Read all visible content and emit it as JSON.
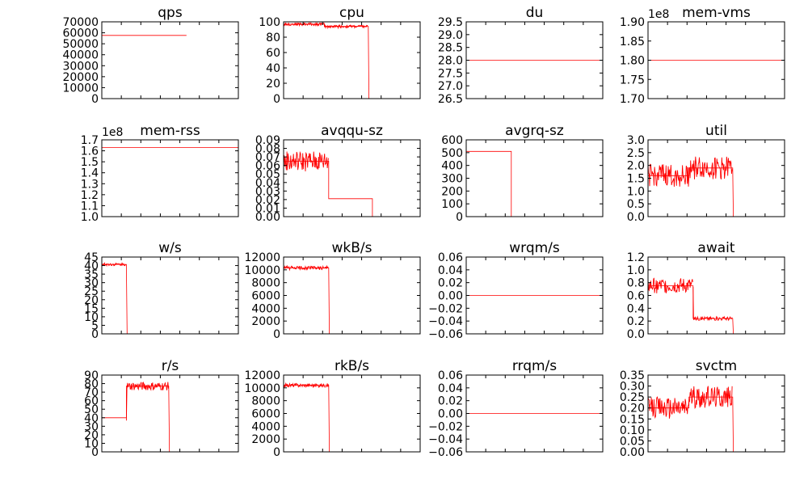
{
  "chart_data": [
    {
      "type": "line",
      "title": "qps",
      "yticks": [
        "0",
        "10000",
        "20000",
        "30000",
        "40000",
        "50000",
        "60000",
        "70000"
      ],
      "ylim": [
        0,
        70000
      ],
      "sci": "",
      "series": [
        {
          "color": "#ff0000",
          "x": [
            0,
            0.62,
            0.62,
            1
          ],
          "y": [
            57600,
            57600,
            null,
            null
          ]
        }
      ]
    },
    {
      "type": "line",
      "title": "cpu",
      "yticks": [
        "0",
        "20",
        "40",
        "60",
        "80",
        "100"
      ],
      "ylim": [
        0,
        100
      ],
      "sci": "",
      "series": [
        {
          "color": "#ff0000",
          "x": [
            0,
            0.3,
            0.3,
            0.62,
            0.62,
            0.625,
            1
          ],
          "y": [
            97,
            97,
            94,
            94,
            94,
            0,
            0
          ],
          "noise": [
            [
              0,
              0.62,
              2
            ]
          ]
        }
      ]
    },
    {
      "type": "line",
      "title": "du",
      "yticks": [
        "26.5",
        "27.0",
        "27.5",
        "28.0",
        "28.5",
        "29.0",
        "29.5"
      ],
      "ylim": [
        26.5,
        29.5
      ],
      "sci": "",
      "series": [
        {
          "color": "#ff0000",
          "x": [
            0,
            1
          ],
          "y": [
            28.0,
            28.0
          ]
        }
      ]
    },
    {
      "type": "line",
      "title": "mem-vms",
      "yticks": [
        "1.70",
        "1.75",
        "1.80",
        "1.85",
        "1.90"
      ],
      "ylim": [
        1.7,
        1.9
      ],
      "sci": "1e8",
      "series": [
        {
          "color": "#ff0000",
          "x": [
            0,
            1
          ],
          "y": [
            1.8,
            1.8
          ]
        }
      ]
    },
    {
      "type": "line",
      "title": "mem-rss",
      "yticks": [
        "1.0",
        "1.1",
        "1.2",
        "1.3",
        "1.4",
        "1.5",
        "1.6",
        "1.7"
      ],
      "ylim": [
        1.0,
        1.7
      ],
      "sci": "1e8",
      "series": [
        {
          "color": "#ff0000",
          "x": [
            0,
            1
          ],
          "y": [
            1.63,
            1.63
          ]
        }
      ]
    },
    {
      "type": "line",
      "title": "avqqu-sz",
      "yticks": [
        "0.00",
        "0.01",
        "0.02",
        "0.03",
        "0.04",
        "0.05",
        "0.06",
        "0.07",
        "0.08",
        "0.09"
      ],
      "ylim": [
        0,
        0.09
      ],
      "sci": "",
      "series": [
        {
          "color": "#ff0000",
          "x": [
            0,
            0.33,
            0.33,
            0.65,
            0.65,
            1
          ],
          "y": [
            0.065,
            0.065,
            0.021,
            0.021,
            0.0,
            0.0
          ],
          "noise": [
            [
              0,
              0.33,
              0.012
            ]
          ]
        }
      ]
    },
    {
      "type": "line",
      "title": "avgrq-sz",
      "yticks": [
        "0",
        "100",
        "200",
        "300",
        "400",
        "500",
        "600"
      ],
      "ylim": [
        0,
        600
      ],
      "sci": "",
      "series": [
        {
          "color": "#ff0000",
          "x": [
            0,
            0.33,
            0.33,
            0.34,
            1
          ],
          "y": [
            510,
            510,
            0,
            0,
            0
          ]
        }
      ]
    },
    {
      "type": "line",
      "title": "util",
      "yticks": [
        "0.0",
        "0.5",
        "1.0",
        "1.5",
        "2.0",
        "2.5",
        "3.0"
      ],
      "ylim": [
        0,
        3.0
      ],
      "sci": "",
      "series": [
        {
          "color": "#ff0000",
          "x": [
            0,
            0.3,
            0.3,
            0.62,
            0.62,
            0.625,
            1
          ],
          "y": [
            1.6,
            1.6,
            1.9,
            1.9,
            1.9,
            0,
            0
          ],
          "noise": [
            [
              0,
              0.62,
              0.45
            ]
          ]
        }
      ]
    },
    {
      "type": "line",
      "title": "w/s",
      "yticks": [
        "0",
        "5",
        "10",
        "15",
        "20",
        "25",
        "30",
        "35",
        "40",
        "45"
      ],
      "ylim": [
        0,
        45
      ],
      "sci": "",
      "series": [
        {
          "color": "#ff0000",
          "x": [
            0,
            0.18,
            0.18,
            0.185,
            1
          ],
          "y": [
            40.7,
            40.7,
            40.7,
            0,
            0
          ],
          "noise": [
            [
              0,
              0.18,
              0.8
            ]
          ]
        }
      ]
    },
    {
      "type": "line",
      "title": "wkB/s",
      "yticks": [
        "0",
        "2000",
        "4000",
        "6000",
        "8000",
        "10000",
        "12000"
      ],
      "ylim": [
        0,
        12000
      ],
      "sci": "",
      "series": [
        {
          "color": "#ff0000",
          "x": [
            0,
            0.33,
            0.33,
            0.335,
            1
          ],
          "y": [
            10300,
            10300,
            10300,
            0,
            0
          ],
          "noise": [
            [
              0,
              0.33,
              300
            ]
          ]
        }
      ]
    },
    {
      "type": "line",
      "title": "wrqm/s",
      "yticks": [
        "−0.06",
        "−0.04",
        "−0.02",
        "0.00",
        "0.02",
        "0.04",
        "0.06"
      ],
      "ylim": [
        -0.06,
        0.06
      ],
      "sci": "",
      "series": [
        {
          "color": "#ff0000",
          "x": [
            0,
            1
          ],
          "y": [
            0.0,
            0.0
          ]
        }
      ]
    },
    {
      "type": "line",
      "title": "await",
      "yticks": [
        "0.0",
        "0.2",
        "0.4",
        "0.6",
        "0.8",
        "1.0",
        "1.2"
      ],
      "ylim": [
        0,
        1.2
      ],
      "sci": "",
      "series": [
        {
          "color": "#ff0000",
          "x": [
            0,
            0.33,
            0.33,
            0.62,
            0.62,
            0.625,
            1
          ],
          "y": [
            0.75,
            0.75,
            0.24,
            0.24,
            0.24,
            0,
            0
          ],
          "noise": [
            [
              0,
              0.33,
              0.12
            ],
            [
              0.33,
              0.62,
              0.03
            ]
          ]
        }
      ]
    },
    {
      "type": "line",
      "title": "r/s",
      "yticks": [
        "0",
        "10",
        "20",
        "30",
        "40",
        "50",
        "60",
        "70",
        "80",
        "90"
      ],
      "ylim": [
        0,
        90
      ],
      "sci": "",
      "series": [
        {
          "color": "#ff0000",
          "x": [
            0,
            0.18,
            0.18,
            0.49,
            0.49,
            0.495,
            1
          ],
          "y": [
            40,
            40,
            77,
            77,
            77,
            0,
            0
          ],
          "noise": [
            [
              0.18,
              0.49,
              5
            ]
          ]
        }
      ]
    },
    {
      "type": "line",
      "title": "rkB/s",
      "yticks": [
        "0",
        "2000",
        "4000",
        "6000",
        "8000",
        "10000",
        "12000"
      ],
      "ylim": [
        0,
        12000
      ],
      "sci": "",
      "series": [
        {
          "color": "#ff0000",
          "x": [
            0,
            0.33,
            0.33,
            0.335,
            1
          ],
          "y": [
            10400,
            10400,
            10400,
            0,
            0
          ],
          "noise": [
            [
              0,
              0.33,
              300
            ]
          ]
        }
      ]
    },
    {
      "type": "line",
      "title": "rrqm/s",
      "yticks": [
        "−0.06",
        "−0.04",
        "−0.02",
        "0.00",
        "0.02",
        "0.04",
        "0.06"
      ],
      "ylim": [
        -0.06,
        0.06
      ],
      "sci": "",
      "series": [
        {
          "color": "#ff0000",
          "x": [
            0,
            1
          ],
          "y": [
            0.0,
            0.0
          ]
        }
      ]
    },
    {
      "type": "line",
      "title": "svctm",
      "yticks": [
        "0.00",
        "0.05",
        "0.10",
        "0.15",
        "0.20",
        "0.25",
        "0.30",
        "0.35"
      ],
      "ylim": [
        0,
        0.35
      ],
      "sci": "",
      "series": [
        {
          "color": "#ff0000",
          "x": [
            0,
            0.3,
            0.3,
            0.62,
            0.62,
            0.625,
            1
          ],
          "y": [
            0.2,
            0.2,
            0.25,
            0.25,
            0.25,
            0,
            0
          ],
          "noise": [
            [
              0,
              0.62,
              0.05
            ]
          ]
        }
      ]
    }
  ]
}
